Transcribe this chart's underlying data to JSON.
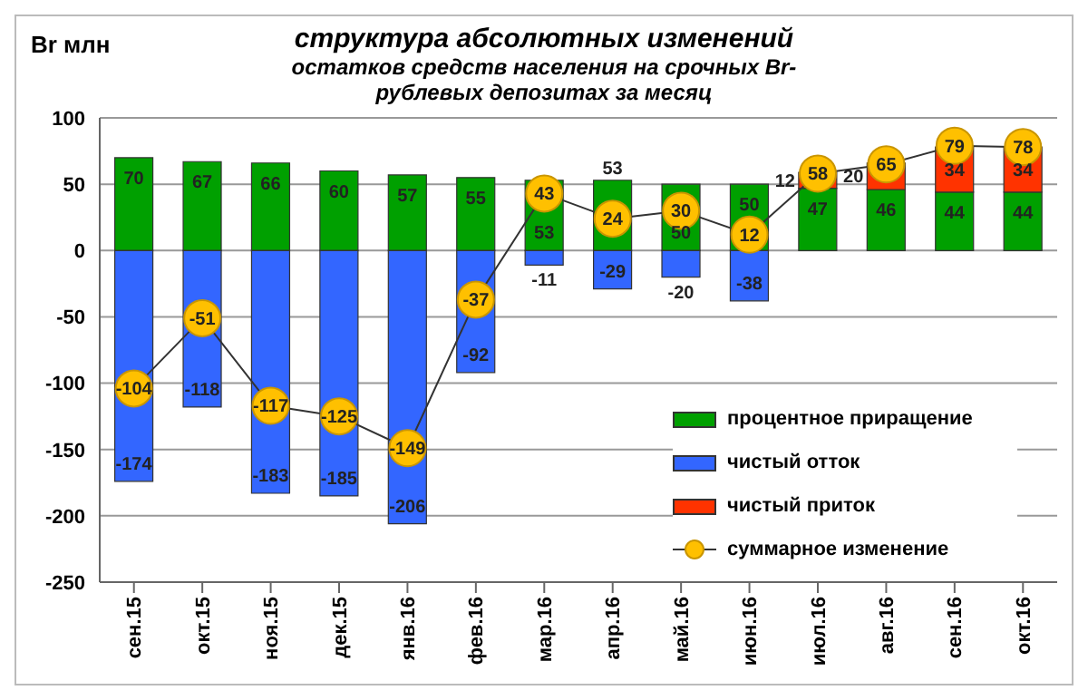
{
  "chart_data": {
    "type": "bar",
    "title": "структура абсолютных изменений",
    "subtitle": "остатков средств населения на срочных Br-рублевых депозитах за месяц",
    "ylabel": "Br млн",
    "categories": [
      "сен.15",
      "окт.15",
      "ноя.15",
      "дек.15",
      "янв.16",
      "фев.16",
      "мар.16",
      "апр.16",
      "май.16",
      "июн.16",
      "июл.16",
      "авг.16",
      "сен.16",
      "окт.16"
    ],
    "series": [
      {
        "name": "процентное приращение",
        "color": "#00a000",
        "values": [
          70,
          67,
          66,
          60,
          57,
          55,
          53,
          53,
          50,
          50,
          47,
          46,
          44,
          44
        ]
      },
      {
        "name": "чистый отток",
        "color": "#3366ff",
        "values": [
          -174,
          -118,
          -183,
          -185,
          -206,
          -92,
          -11,
          -29,
          -20,
          -38,
          null,
          null,
          null,
          null
        ]
      },
      {
        "name": "чистый приток",
        "color": "#ff3300",
        "values": [
          null,
          null,
          null,
          null,
          null,
          null,
          null,
          null,
          null,
          null,
          12,
          20,
          34,
          34
        ]
      },
      {
        "name": "суммарное изменение",
        "type": "line",
        "color": "#ffc000",
        "marker": "circle",
        "values": [
          -104,
          -51,
          -117,
          -125,
          -149,
          -37,
          43,
          24,
          30,
          12,
          58,
          65,
          79,
          78
        ]
      }
    ],
    "stacked": true,
    "ylim": [
      -250,
      100
    ],
    "yticks": [
      -250,
      -200,
      -150,
      -100,
      -50,
      0,
      50,
      100
    ],
    "grid": "y",
    "legend": "bottom right",
    "data_labels": true
  }
}
